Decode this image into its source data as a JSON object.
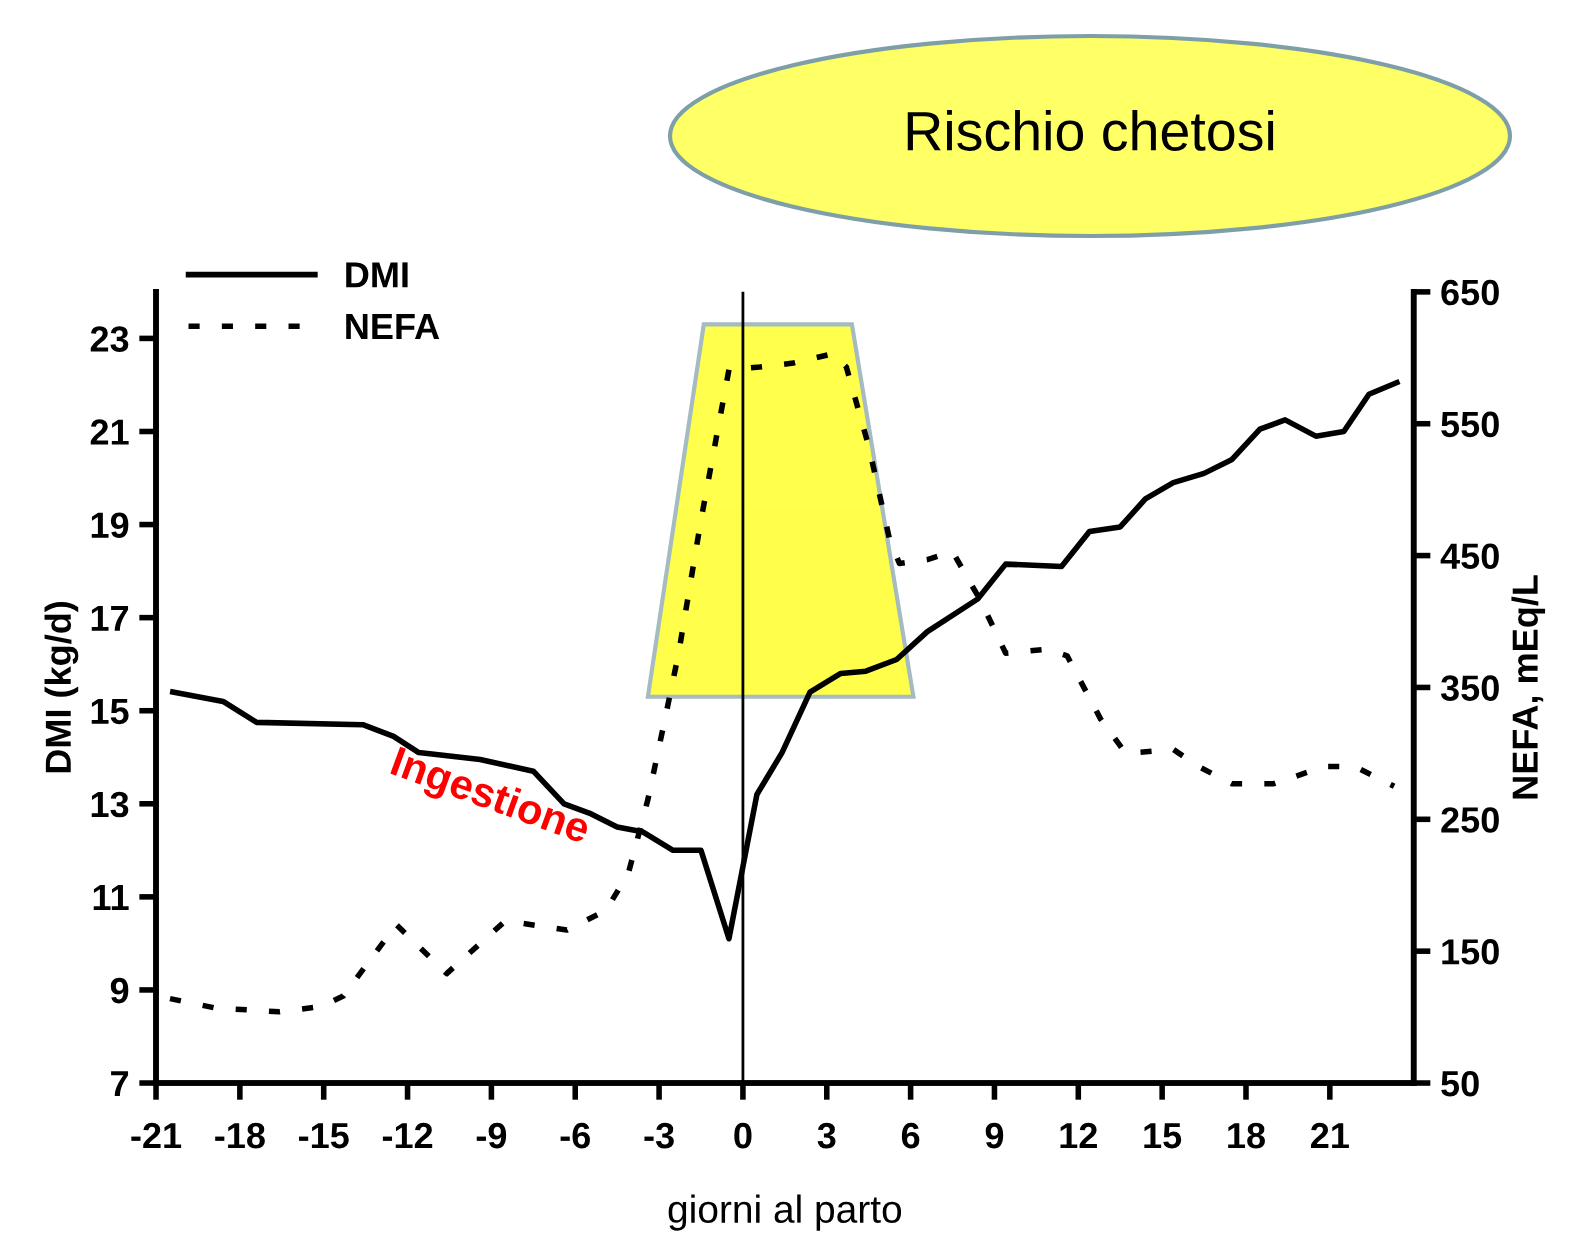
{
  "chart_data": {
    "type": "line",
    "xlabel": "giorni al parto",
    "ylabel": "DMI (kg/d)",
    "y2label": "NEFA, mEq/L",
    "xlim": [
      -21,
      24
    ],
    "xticks": [
      -21,
      -18,
      -15,
      -12,
      -9,
      -6,
      -3,
      0,
      3,
      6,
      9,
      12,
      15,
      18,
      21
    ],
    "ylim": [
      7,
      24
    ],
    "yticks": [
      7,
      9,
      11,
      13,
      15,
      17,
      19,
      21,
      23
    ],
    "y2lim": [
      50,
      650
    ],
    "y2ticks": [
      50,
      150,
      250,
      350,
      450,
      550,
      650
    ],
    "legend": "top left",
    "grid": false,
    "series": [
      {
        "name": "DMI",
        "color": "#000000",
        "line_style": "solid",
        "x": [
          -20.4,
          -18.6,
          -17.4,
          -13.6,
          -12.5,
          -11.6,
          -9.4,
          -7.5,
          -6.4,
          -5.5,
          -4.5,
          -3.6,
          -2.5,
          -1.5,
          -0.5,
          0.5,
          1.4,
          2.4,
          3.5,
          4.4,
          5.5,
          6.6,
          8.4,
          9.4,
          11.4,
          12.4,
          13.5,
          14.4,
          15.4,
          16.5,
          17.5,
          18.5,
          19.4,
          20.5,
          21.5,
          22.4,
          23.4
        ],
        "values": [
          15.4,
          15.2,
          14.75,
          14.7,
          14.45,
          14.1,
          13.95,
          13.7,
          13.0,
          12.8,
          12.5,
          12.4,
          12.0,
          12.0,
          10.1,
          13.2,
          14.1,
          15.4,
          15.8,
          15.85,
          16.1,
          16.7,
          17.4,
          18.15,
          18.1,
          18.85,
          18.95,
          19.55,
          19.9,
          20.1,
          20.4,
          21.05,
          21.25,
          20.9,
          21.0,
          21.8,
          22.05
        ]
      },
      {
        "name": "NEFA",
        "color": "#000000",
        "line_style": "dotted",
        "axis": "y2",
        "x": [
          -20.5,
          -18.9,
          -16.6,
          -15.1,
          -14.3,
          -12.4,
          -10.6,
          -8.5,
          -6.3,
          -4.9,
          -4.1,
          -3.4,
          -2.8,
          -2.3,
          -1.5,
          -0.5,
          0.6,
          1.8,
          3.2,
          3.7,
          4.5,
          5.25,
          5.6,
          6.6,
          7.5,
          8.5,
          9.4,
          10.9,
          11.6,
          12.8,
          13.7,
          15.4,
          16.3,
          17.5,
          19.0,
          20.8,
          21.9,
          23.3
        ],
        "values": [
          114,
          107,
          104,
          108,
          116,
          170,
          133,
          173,
          166,
          181,
          209,
          265,
          325,
          376,
          477,
          591,
          593,
          596,
          603,
          593,
          533,
          462,
          444,
          447,
          453,
          416,
          376,
          379,
          374,
          326,
          300,
          303,
          290,
          277,
          277,
          290,
          290,
          275
        ]
      }
    ],
    "ref_lines": [
      {
        "axis": "x",
        "value": 0,
        "color": "#000000",
        "line_style": "solid"
      }
    ],
    "annotations": [
      "Ingestione",
      "Rischio chetosi"
    ]
  }
}
